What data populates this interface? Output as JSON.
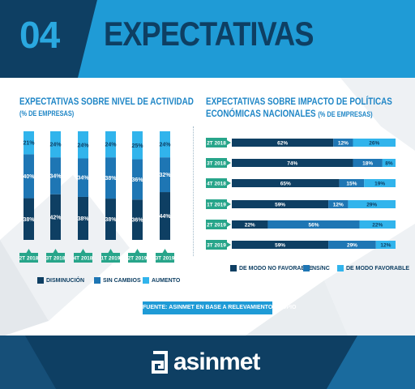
{
  "header": {
    "number": "04",
    "title": "EXPECTATIVAS"
  },
  "colors": {
    "dark": "#0e3f63",
    "mid": "#1e76b4",
    "light": "#31b4ec",
    "teal": "#27a58a"
  },
  "left": {
    "title": "EXPECTATIVAS SOBRE NIVEL DE ACTIVIDAD",
    "subtitle": "(% DE EMPRESAS)"
  },
  "right": {
    "title_line1": "EXPECTATIVAS SOBRE IMPACTO DE POLÍTICAS",
    "title_line2": "ECONÓMICAS NACIONALES",
    "subtitle": "(% DE EMPRESAS)"
  },
  "chart_data": [
    {
      "type": "bar",
      "stacked": true,
      "orientation": "vertical",
      "title": "EXPECTATIVAS SOBRE NIVEL DE ACTIVIDAD",
      "subtitle": "(% DE EMPRESAS)",
      "categories": [
        "2T 2018",
        "3T 2018",
        "4T 2018",
        "1T 2019",
        "2T 2019",
        "3T 2019"
      ],
      "series": [
        {
          "name": "DISMINUCIÓN",
          "values": [
            38,
            42,
            38,
            38,
            36,
            44
          ],
          "labels": [
            "38%",
            "42%",
            "38%",
            "38%",
            "36%",
            "44%"
          ]
        },
        {
          "name": "SIN CAMBIOS",
          "values": [
            40,
            34,
            34,
            38,
            36,
            32
          ],
          "labels": [
            "40%",
            "34%",
            "34%",
            "38%",
            "36%",
            "32%"
          ]
        },
        {
          "name": "AUMENTO",
          "values": [
            21,
            24,
            24,
            24,
            25,
            24
          ],
          "labels": [
            "21%",
            "24%",
            "24%",
            "24%",
            "25%",
            "24%"
          ]
        }
      ],
      "legend": "bottom"
    },
    {
      "type": "bar",
      "stacked": true,
      "orientation": "horizontal",
      "title": "EXPECTATIVAS SOBRE IMPACTO DE POLÍTICAS ECONÓMICAS NACIONALES",
      "subtitle": "(% DE EMPRESAS)",
      "categories": [
        "2T 2018",
        "3T 2018",
        "4T 2018",
        "1T 2019",
        "2T 2019",
        "3T 2019"
      ],
      "series": [
        {
          "name": "DE MODO NO FAVORABLE",
          "values": [
            62,
            74,
            65,
            59,
            22,
            59
          ],
          "labels": [
            "62%",
            "74%",
            "65%",
            "59%",
            "22%",
            "59%"
          ]
        },
        {
          "name": "NS/NC",
          "values": [
            12,
            18,
            15,
            12,
            56,
            29
          ],
          "labels": [
            "12%",
            "18%",
            "15%",
            "12%",
            "56%",
            "29%"
          ]
        },
        {
          "name": "DE MODO FAVORABLE",
          "values": [
            26,
            8,
            19,
            29,
            22,
            12
          ],
          "labels": [
            "26%",
            "8%",
            "19%",
            "29%",
            "22%",
            "12%"
          ]
        }
      ],
      "legend": "bottom"
    }
  ],
  "source": {
    "prefix": "FUENTE:",
    "brand": "ASINMET",
    "rest": "EN BASE A RELEVAMIENTO PROPIO"
  },
  "footer": {
    "logo_text": "asinmet"
  }
}
